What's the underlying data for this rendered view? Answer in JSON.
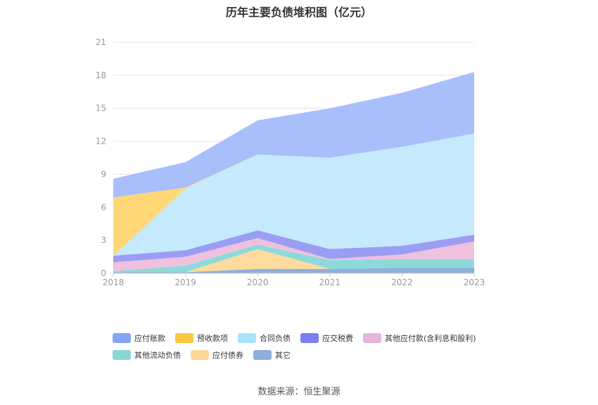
{
  "title": "历年主要负债堆积图（亿元）",
  "source_note": "数据来源：恒生聚源",
  "chart_data": {
    "type": "area",
    "stacked": true,
    "title": "历年主要负债堆积图（亿元）",
    "x": [
      "2018",
      "2019",
      "2020",
      "2021",
      "2022",
      "2023"
    ],
    "ylim": [
      0,
      21
    ],
    "yticks": [
      "0",
      "3",
      "6",
      "9",
      "12",
      "15",
      "18",
      "21"
    ],
    "grid": true,
    "legend_position": "bottom",
    "series": [
      {
        "name": "其它",
        "color": "#8fafdc",
        "values": [
          0.1,
          0.1,
          0.4,
          0.4,
          0.5,
          0.5
        ]
      },
      {
        "name": "应付债券",
        "color": "#ffdc9e",
        "values": [
          0,
          0,
          1.8,
          0,
          0,
          0
        ]
      },
      {
        "name": "其他流动负债",
        "color": "#8ddada",
        "values": [
          0.1,
          0.6,
          0.4,
          0.8,
          0.8,
          0.8
        ]
      },
      {
        "name": "其他应付款(含利息和股利)",
        "color": "#efc1de",
        "values": [
          0.8,
          0.8,
          0.6,
          0.1,
          0.4,
          1.6
        ]
      },
      {
        "name": "应交税费",
        "color": "#9a9df2",
        "values": [
          0.6,
          0.6,
          0.7,
          0.9,
          0.8,
          0.6
        ]
      },
      {
        "name": "合同负债",
        "color": "#c5e9fd",
        "values": [
          0,
          5.6,
          6.9,
          8.3,
          9.0,
          9.2
        ]
      },
      {
        "name": "预收款项",
        "color": "#ffd776",
        "values": [
          5.3,
          0.1,
          0,
          0,
          0,
          0
        ]
      },
      {
        "name": "应付账款",
        "color": "#a8bffc",
        "values": [
          1.7,
          2.3,
          3.1,
          4.5,
          4.9,
          5.6
        ]
      }
    ]
  },
  "legend": {
    "row1": [
      {
        "label": "应付账款",
        "color": "#83a6f5"
      },
      {
        "label": "预收款项",
        "color": "#fbc743"
      },
      {
        "label": "合同负债",
        "color": "#a9e2fb"
      },
      {
        "label": "应交税费",
        "color": "#7b7ef0"
      },
      {
        "label": "其他应付款(含利息和股利)",
        "color": "#e6b5dc"
      }
    ],
    "row2": [
      {
        "label": "其他流动负债",
        "color": "#89d7d4"
      },
      {
        "label": "应付债券",
        "color": "#fed897"
      },
      {
        "label": "其它",
        "color": "#8eaedb"
      }
    ]
  }
}
